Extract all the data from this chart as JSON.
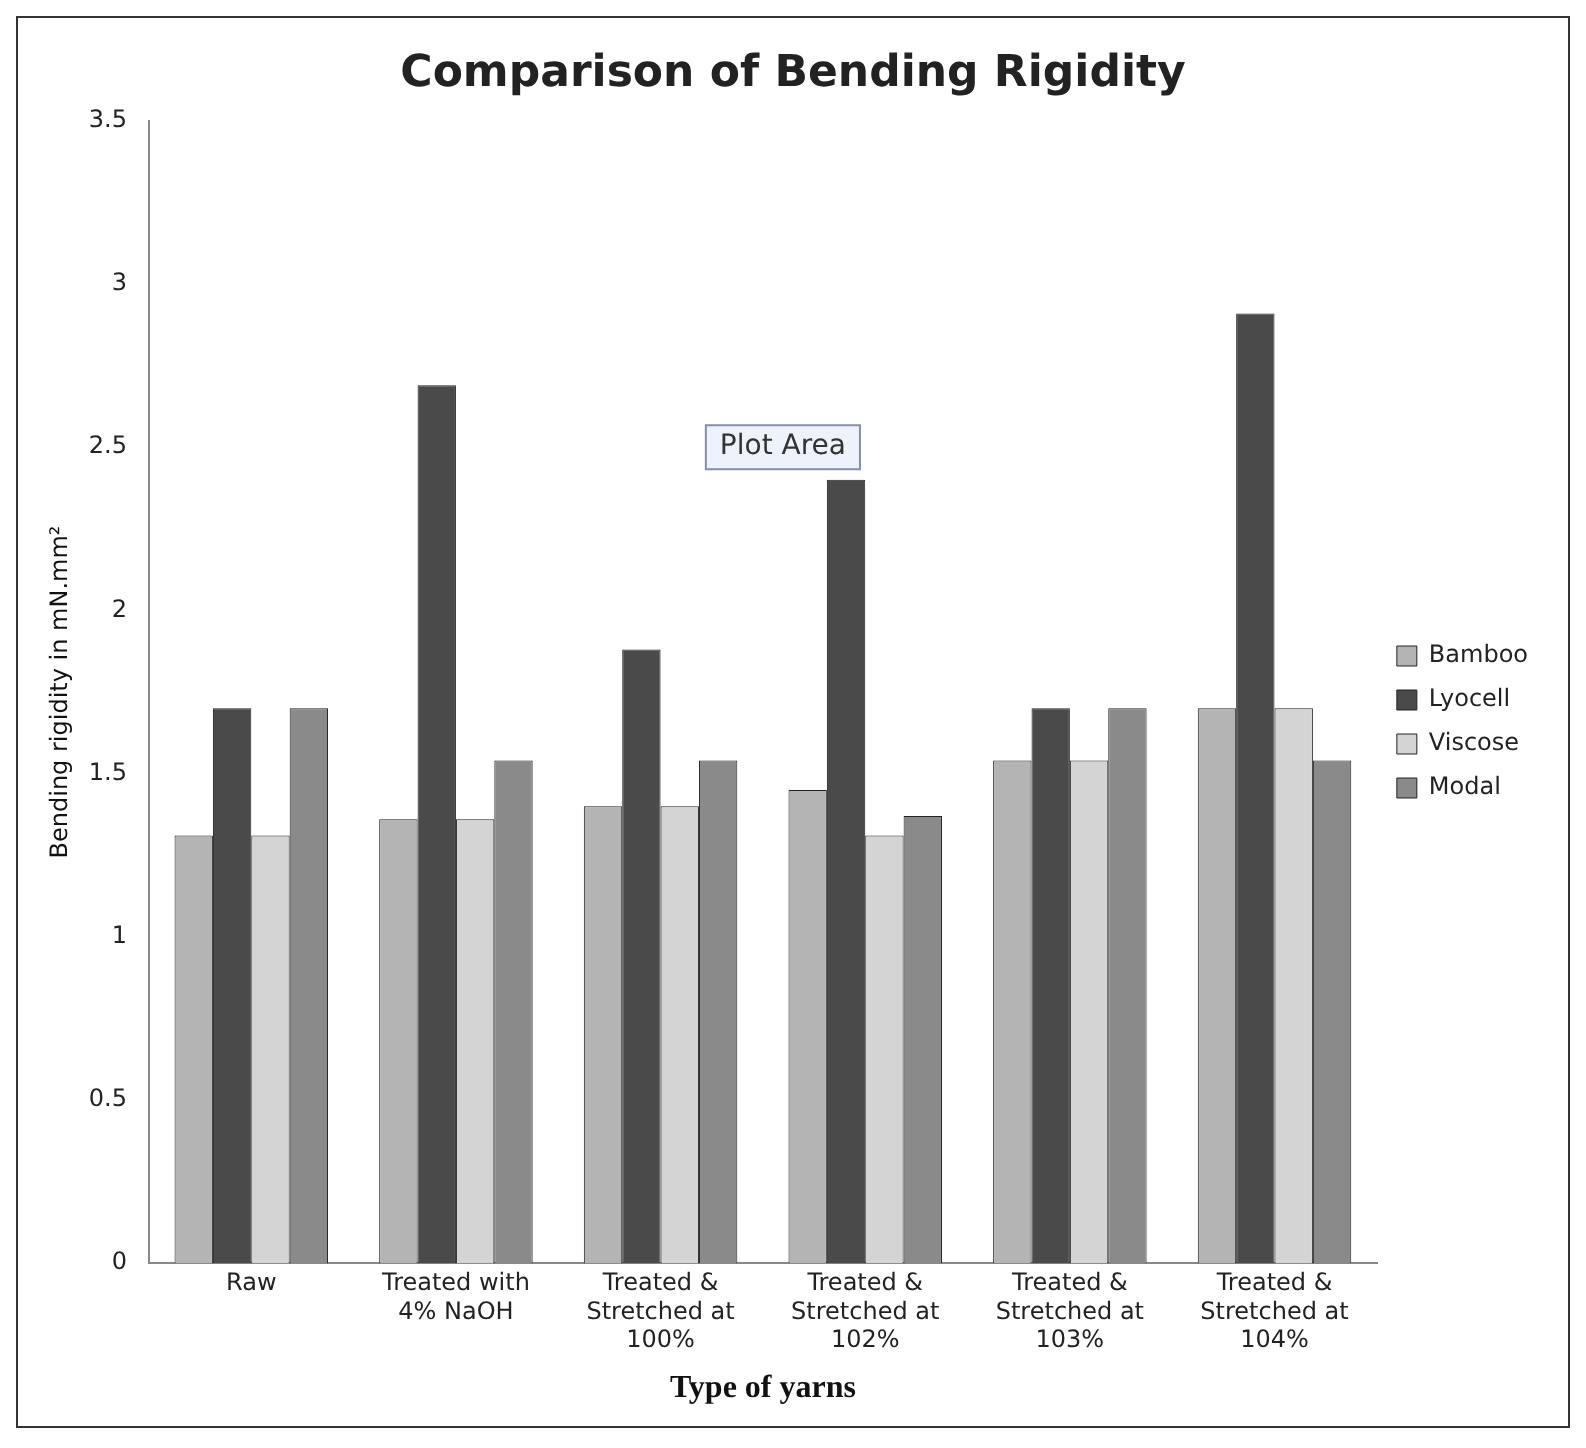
{
  "chart_data": {
    "type": "bar",
    "title": "Comparison of Bending Rigidity",
    "xlabel": "Type of yarns",
    "ylabel": "Bending rigidity in mN.mm²",
    "categories": [
      "Raw",
      "Treated with 4% NaOH",
      "Treated & Stretched at 100%",
      "Treated & Stretched at 102%",
      "Treated & Stretched at 103%",
      "Treated & Stretched at 104%"
    ],
    "series": [
      {
        "name": "Bamboo",
        "color": "#b4b4b4",
        "values": [
          1.31,
          1.36,
          1.4,
          1.45,
          1.54,
          1.7
        ]
      },
      {
        "name": "Lyocell",
        "color": "#4a4a4a",
        "values": [
          1.7,
          2.69,
          1.88,
          2.4,
          1.7,
          2.91
        ]
      },
      {
        "name": "Viscose",
        "color": "#d4d4d4",
        "values": [
          1.31,
          1.36,
          1.4,
          1.31,
          1.54,
          1.7
        ]
      },
      {
        "name": "Modal",
        "color": "#8a8a8a",
        "values": [
          1.7,
          1.54,
          1.54,
          1.37,
          1.7,
          1.54
        ]
      }
    ],
    "ylim": [
      0,
      3.5
    ],
    "yticks": [
      0,
      0.5,
      1,
      1.5,
      2,
      2.5,
      3,
      3.5
    ],
    "grid": false,
    "legend": "right",
    "annotations": [
      "Plot Area"
    ]
  }
}
